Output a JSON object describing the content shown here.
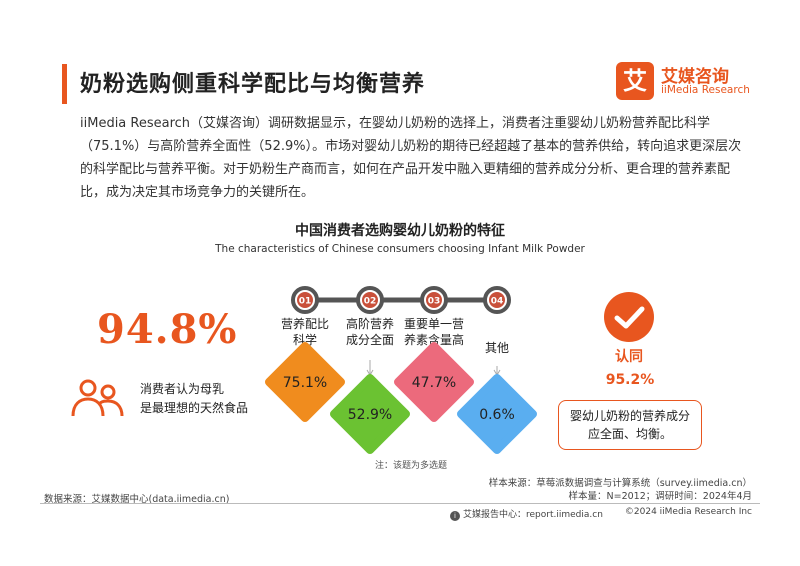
{
  "header": {
    "title": "奶粉选购侧重科学配比与均衡营养"
  },
  "logo": {
    "mark": "艾",
    "name_cn": "艾媒咨询",
    "name_en": "iiMedia Research",
    "color": "#e8561f"
  },
  "intro": {
    "text": "iiMedia Research（艾媒咨询）调研数据显示，在婴幼儿奶粉的选择上，消费者注重婴幼儿奶粉营养配比科学（75.1%）与高阶营养全面性（52.9%）。市场对婴幼儿奶粉的期待已经超越了基本的营养供给，转向追求更深层次的科学配比与营养平衡。对于奶粉生产商而言，如何在产品开发中融入更精细的营养成分分析、更合理的营养素配比，成为决定其市场竞争力的关键所在。"
  },
  "chart_data": {
    "type": "bar",
    "title": "中国消费者选购婴幼儿奶粉的特征",
    "subtitle": "The characteristics of Chinese consumers choosing Infant Milk Powder",
    "categories": [
      "营养配比科学",
      "高阶营养成分全面",
      "重要单一营养素含量高",
      "其他"
    ],
    "category_lines": [
      [
        "营养配比",
        "科学"
      ],
      [
        "高阶营养",
        "成分全面"
      ],
      [
        "重要单一营",
        "养素含量高"
      ],
      [
        "其他"
      ]
    ],
    "step_numbers": [
      "01",
      "02",
      "03",
      "04"
    ],
    "values": [
      75.1,
      52.9,
      47.7,
      0.6
    ],
    "value_labels": [
      "75.1%",
      "52.9%",
      "47.7%",
      "0.6%"
    ],
    "unit": "%",
    "colors": [
      "#f08c1e",
      "#6bc232",
      "#ec6a7c",
      "#5aaef0"
    ],
    "note": "注：该题为多选题"
  },
  "left_panel": {
    "percentage": "94.8%",
    "caption_lines": [
      "消费者认为母乳",
      "是最理想的天然食品"
    ],
    "icon": "people-icon"
  },
  "right_panel": {
    "icon": "check-icon",
    "label": "认同",
    "value": "95.2%",
    "box_text": "婴幼儿奶粉的营养成分应全面、均衡。"
  },
  "footer": {
    "sample_source": "样本来源：草莓派数据调查与计算系统（survey.iimedia.cn）",
    "sample_size": "样本量：N=2012；调研时间：2024年4月",
    "data_source": "数据来源：艾媒数据中心(data.iimedia.cn)",
    "report_center": "艾媒报告中心：report.iimedia.cn",
    "copyright": "©2024 iiMedia Research Inc"
  }
}
